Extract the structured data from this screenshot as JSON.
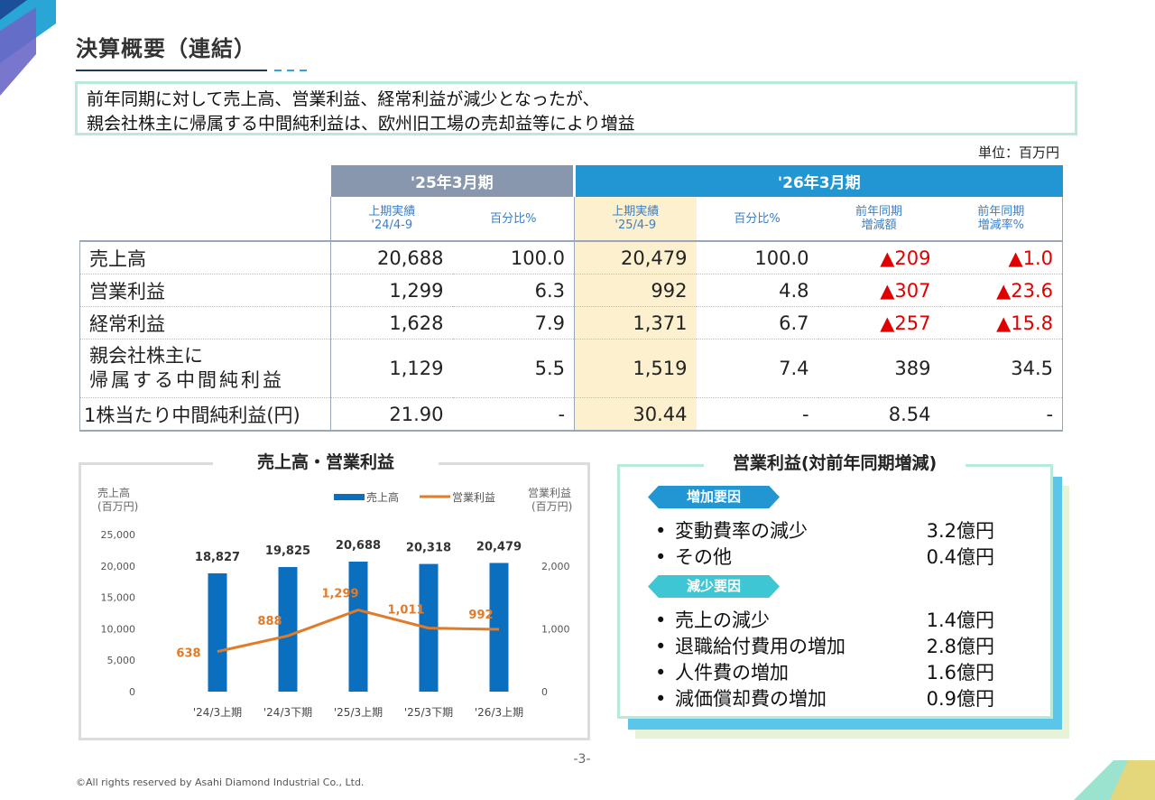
{
  "title": "決算概要（連結）",
  "summary": {
    "line1": "前年同期に対して売上高、営業利益、経常利益が減少となったが、",
    "line2": "親会社株主に帰属する中間純利益は、欧州旧工場の売却益等により増益"
  },
  "unit": "単位：百万円",
  "table": {
    "period_prev": "'25年3月期",
    "period_curr": "'26年3月期",
    "col_prev_actual": [
      "上期実績",
      "'24/4-9"
    ],
    "col_prev_pct": "百分比%",
    "col_curr_actual": [
      "上期実績",
      "'25/4-9"
    ],
    "col_curr_pct": "百分比%",
    "col_diff": [
      "前年同期",
      "増減額"
    ],
    "col_rate": [
      "前年同期",
      "増減率%"
    ],
    "rows": [
      {
        "label": "売上高",
        "prev": "20,688",
        "prev_pct": "100.0",
        "curr": "20,479",
        "curr_pct": "100.0",
        "diff": "▲209",
        "rate": "▲1.0"
      },
      {
        "label": "営業利益",
        "prev": "1,299",
        "prev_pct": "6.3",
        "curr": "992",
        "curr_pct": "4.8",
        "diff": "▲307",
        "rate": "▲23.6"
      },
      {
        "label": "経常利益",
        "prev": "1,628",
        "prev_pct": "7.9",
        "curr": "1,371",
        "curr_pct": "6.7",
        "diff": "▲257",
        "rate": "▲15.8"
      },
      {
        "label_line1": "親会社株主に",
        "label_line2": "帰属する中間純利益",
        "prev": "1,129",
        "prev_pct": "5.5",
        "curr": "1,519",
        "curr_pct": "7.4",
        "diff": "389",
        "rate": "34.5"
      },
      {
        "label": "1株当たり中間純利益(円)",
        "prev": "21.90",
        "prev_pct": "-",
        "curr": "30.44",
        "curr_pct": "-",
        "diff": "8.54",
        "rate": "-"
      }
    ]
  },
  "chart_title": "売上高・営業利益",
  "chart_data": {
    "type": "bar",
    "categories": [
      "'24/3上期",
      "'24/3下期",
      "'25/3上期",
      "'25/3下期",
      "'26/3上期"
    ],
    "series": [
      {
        "name": "売上高",
        "type": "bar",
        "axis": "left",
        "values": [
          18827,
          19825,
          20688,
          20318,
          20479
        ],
        "labels": [
          "18,827",
          "19,825",
          "20,688",
          "20,318",
          "20,479"
        ],
        "color": "#0b6fc0"
      },
      {
        "name": "営業利益",
        "type": "line",
        "axis": "right",
        "values": [
          638,
          888,
          1299,
          1011,
          992
        ],
        "labels": [
          "638",
          "888",
          "1,299",
          "1,011",
          "992"
        ],
        "color": "#e07b2a"
      }
    ],
    "ylabel_left": [
      "売上高",
      "(百万円)"
    ],
    "ylabel_right": [
      "営業利益",
      "(百万円)"
    ],
    "ylim_left": [
      0,
      25000
    ],
    "ylim_right": [
      0,
      2500
    ],
    "yticks_left": [
      "0",
      "5,000",
      "10,000",
      "15,000",
      "20,000",
      "25,000"
    ],
    "yticks_right": [
      "0",
      "1,000",
      "2,000"
    ],
    "legend": "top-right",
    "grid": false
  },
  "factors": {
    "title": "営業利益(対前年同期増減)",
    "increase_tag": "増加要因",
    "decrease_tag": "減少要因",
    "increase": [
      {
        "label": "変動費率の減少",
        "value": "3.2億円"
      },
      {
        "label": "その他",
        "value": "0.4億円"
      }
    ],
    "decrease": [
      {
        "label": "売上の減少",
        "value": "1.4億円"
      },
      {
        "label": "退職給付費用の増加",
        "value": "2.8億円"
      },
      {
        "label": "人件費の増加",
        "value": "1.6億円"
      },
      {
        "label": "減価償却費の増加",
        "value": "0.9億円"
      }
    ],
    "bullet": "•"
  },
  "page_number": "-3-",
  "copyright": "©All rights reserved by Asahi Diamond Industrial Co., Ltd."
}
